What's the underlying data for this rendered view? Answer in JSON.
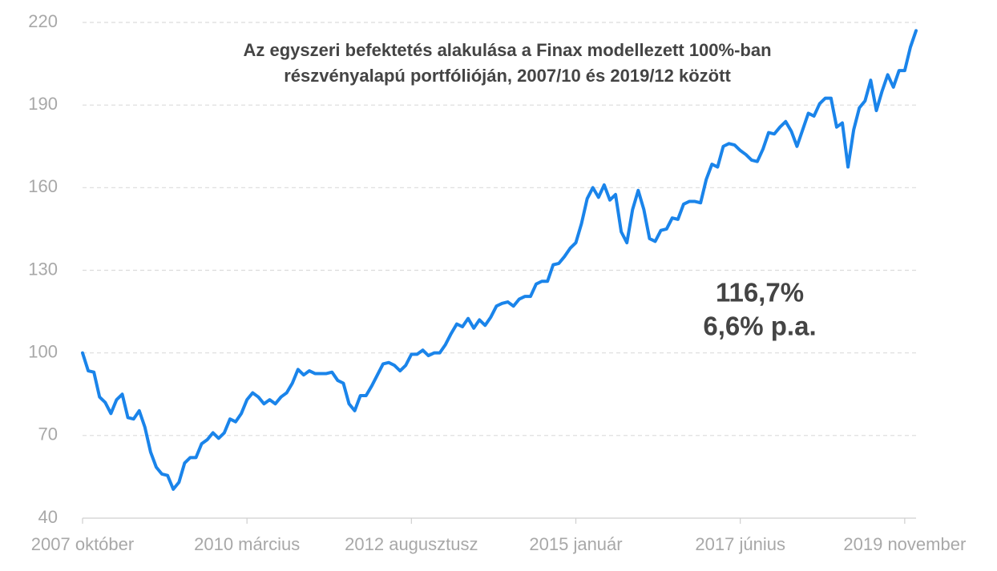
{
  "chart_data": {
    "type": "line",
    "title": [
      "Az egyszeri befektetés alakulása a Finax modellezett 100%-ban",
      "részvényalapú portfólióján, 2007/10 és 2019/12 között"
    ],
    "annotations": [
      "116,7%",
      "6,6% p.a."
    ],
    "categories": [
      "2007 október",
      null,
      null,
      null,
      null,
      null,
      null,
      null,
      null,
      null,
      null,
      null,
      null,
      null,
      null,
      null,
      null,
      null,
      null,
      null,
      null,
      null,
      null,
      null,
      null,
      null,
      null,
      null,
      null,
      "2010 március",
      null,
      null,
      null,
      null,
      null,
      null,
      null,
      null,
      null,
      null,
      null,
      null,
      null,
      null,
      null,
      null,
      null,
      null,
      null,
      null,
      null,
      null,
      null,
      null,
      null,
      null,
      null,
      null,
      "2012 augusztusz",
      null,
      null,
      null,
      null,
      null,
      null,
      null,
      null,
      null,
      null,
      null,
      null,
      null,
      null,
      null,
      null,
      null,
      null,
      null,
      null,
      null,
      null,
      null,
      null,
      null,
      null,
      null,
      null,
      "2015 január",
      null,
      null,
      null,
      null,
      null,
      null,
      null,
      null,
      null,
      null,
      null,
      null,
      null,
      null,
      null,
      null,
      null,
      null,
      null,
      null,
      null,
      null,
      null,
      null,
      null,
      null,
      null,
      null,
      "2017 június",
      null,
      null,
      null,
      null,
      null,
      null,
      null,
      null,
      null,
      null,
      null,
      null,
      null,
      null,
      null,
      null,
      null,
      null,
      null,
      null,
      null,
      null,
      null,
      null,
      null,
      null,
      null,
      null,
      "2019 november",
      null,
      null
    ],
    "series": [
      {
        "color": "#1a84ea",
        "values": [
          100,
          93.5,
          93,
          84,
          82,
          78,
          83,
          85,
          76.5,
          76,
          79,
          73,
          64,
          58.5,
          56,
          55.5,
          50.5,
          53,
          60,
          62,
          62,
          67,
          68.5,
          71,
          69,
          71,
          76,
          75,
          78,
          83,
          85.5,
          84,
          81.5,
          83,
          81.5,
          84,
          85.5,
          89,
          94,
          92,
          93.5,
          92.5,
          92.5,
          92.5,
          93,
          90,
          89,
          81.5,
          79,
          84.5,
          84.5,
          88,
          92,
          96,
          96.5,
          95.5,
          93.5,
          95.5,
          99.5,
          99.5,
          101,
          99,
          100,
          100,
          103,
          107,
          110.5,
          109.5,
          112.5,
          109,
          112,
          110,
          113,
          117,
          118,
          118.5,
          117,
          119.5,
          120.5,
          120.5,
          125,
          126,
          126,
          132,
          132.5,
          135,
          138,
          140,
          147,
          156,
          160,
          156.5,
          161,
          155.5,
          157.5,
          144,
          140,
          152,
          159,
          152,
          141.5,
          140.5,
          144.5,
          145,
          149,
          148.5,
          154,
          155,
          155,
          154.5,
          163,
          168.5,
          167.5,
          175,
          176,
          175.5,
          173.5,
          172,
          170,
          169.5,
          174,
          180,
          179.5,
          182,
          184,
          180.5,
          175,
          181,
          187,
          186,
          190.5,
          192.5,
          192.5,
          182,
          183.5,
          167.5,
          181,
          189,
          191.5,
          199,
          188,
          195,
          201,
          196.5,
          202.5,
          202.5,
          211,
          217
        ]
      }
    ],
    "ylim": [
      40,
      220
    ],
    "yticks": [
      40,
      70,
      100,
      130,
      160,
      190,
      220
    ],
    "grid": true
  }
}
